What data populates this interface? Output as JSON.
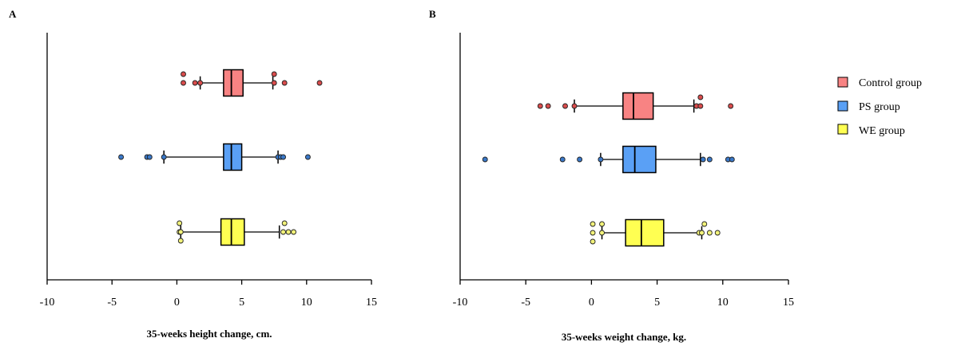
{
  "colors": {
    "control": "#F88383",
    "ps": "#5AA0F5",
    "we": "#FFFF52",
    "control_dot": "#D94C4C",
    "ps_dot": "#3A78C8",
    "we_dot": "#F2F27A"
  },
  "legend": [
    {
      "label": "Control group",
      "color_key": "control"
    },
    {
      "label": "PS group",
      "color_key": "ps"
    },
    {
      "label": "WE group",
      "color_key": "we"
    }
  ],
  "chart_data": [
    {
      "type": "boxplot",
      "orientation": "horizontal",
      "panel_label": "A",
      "xlabel": "35-weeks height change, cm.",
      "xlim": [
        -10,
        15
      ],
      "xticks": [
        -10,
        -5,
        0,
        5,
        10,
        15
      ],
      "xtick_labels": [
        "-10",
        "-5",
        "0",
        "5",
        "10",
        "15"
      ],
      "grid": false,
      "series": [
        {
          "name": "Control group",
          "color_key": "control",
          "whisker_low": 1.8,
          "q1": 3.6,
          "median": 4.2,
          "q3": 5.1,
          "whisker_high": 7.4,
          "outliers": [
            0.5,
            0.5,
            1.4,
            1.8,
            7.5,
            7.5,
            8.3,
            11.0
          ]
        },
        {
          "name": "PS group",
          "color_key": "ps",
          "whisker_low": -1.0,
          "q1": 3.6,
          "median": 4.2,
          "q3": 5.0,
          "whisker_high": 7.8,
          "outliers": [
            -4.3,
            -2.3,
            -2.1,
            -1.0,
            7.8,
            8.0,
            8.2,
            10.1
          ]
        },
        {
          "name": "WE group",
          "color_key": "we",
          "whisker_low": 0.3,
          "q1": 3.4,
          "median": 4.2,
          "q3": 5.2,
          "whisker_high": 7.9,
          "outliers": [
            0.2,
            0.2,
            0.3,
            0.3,
            8.2,
            8.3,
            8.6,
            9.0
          ]
        }
      ]
    },
    {
      "type": "boxplot",
      "orientation": "horizontal",
      "panel_label": "B",
      "xlabel": "35-weeks weight change, kg.",
      "xlim": [
        -10,
        15
      ],
      "xticks": [
        -10,
        -5,
        0,
        5,
        10,
        15
      ],
      "xtick_labels": [
        "-10",
        "-5",
        "0",
        "5",
        "10",
        "15"
      ],
      "grid": false,
      "series": [
        {
          "name": "Control group",
          "color_key": "control",
          "whisker_low": -1.3,
          "q1": 2.4,
          "median": 3.2,
          "q3": 4.7,
          "whisker_high": 7.8,
          "outliers": [
            -3.9,
            -3.3,
            -2.0,
            -1.3,
            8.0,
            8.3,
            8.3,
            10.6
          ]
        },
        {
          "name": "PS group",
          "color_key": "ps",
          "whisker_low": 0.7,
          "q1": 2.4,
          "median": 3.3,
          "q3": 4.9,
          "whisker_high": 8.3,
          "outliers": [
            -8.1,
            -2.2,
            -0.9,
            0.7,
            8.5,
            9.0,
            10.4,
            10.7
          ]
        },
        {
          "name": "WE group",
          "color_key": "we",
          "whisker_low": 0.8,
          "q1": 2.6,
          "median": 3.8,
          "q3": 5.5,
          "whisker_high": 8.4,
          "outliers": [
            0.1,
            0.1,
            0.1,
            0.8,
            0.8,
            8.2,
            8.4,
            8.6,
            9.0,
            9.6
          ]
        }
      ]
    }
  ]
}
